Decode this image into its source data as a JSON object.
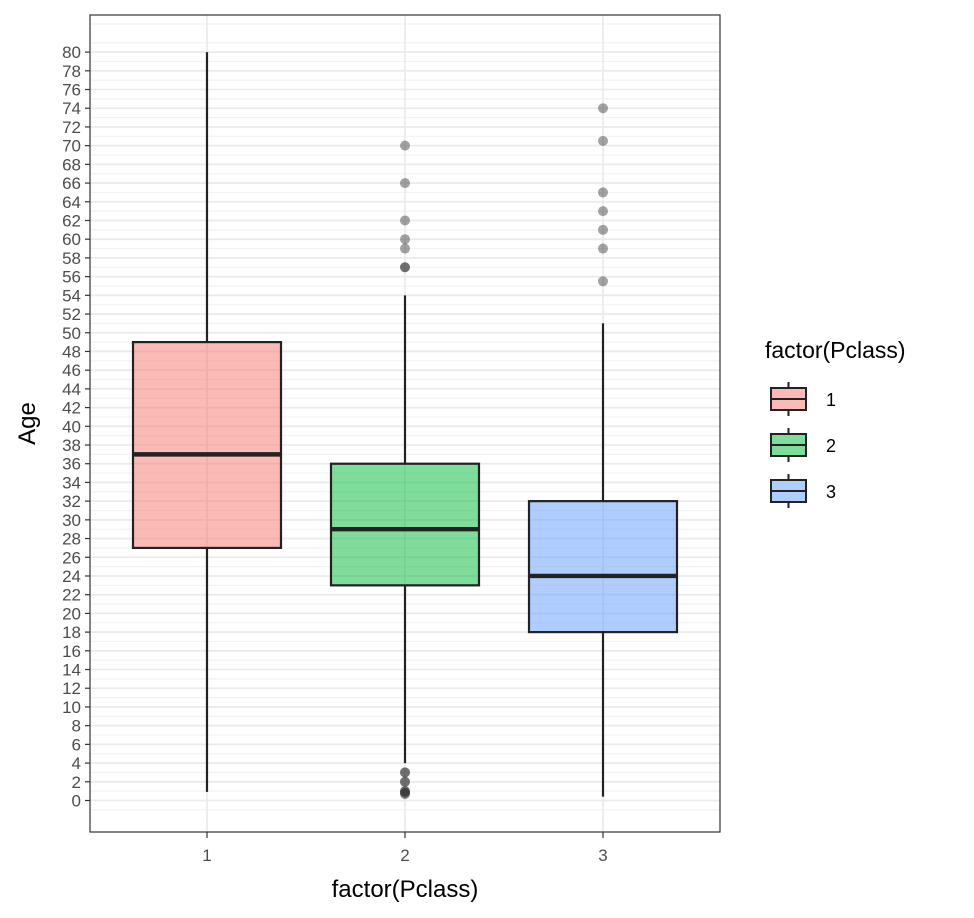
{
  "chart_data": {
    "type": "boxplot",
    "xlabel": "factor(Pclass)",
    "ylabel": "Age",
    "ylim": [
      -3.5,
      84
    ],
    "y_ticks": [
      0,
      2,
      4,
      6,
      8,
      10,
      12,
      14,
      16,
      18,
      20,
      22,
      24,
      26,
      28,
      30,
      32,
      34,
      36,
      38,
      40,
      42,
      44,
      46,
      48,
      50,
      52,
      54,
      56,
      58,
      60,
      62,
      64,
      66,
      68,
      70,
      72,
      74,
      76,
      78,
      80
    ],
    "y_tick_labels": [
      "0",
      "2",
      "4",
      "6",
      "8",
      "10",
      "12",
      "14",
      "16",
      "18",
      "20",
      "22",
      "24",
      "26",
      "28",
      "30",
      "32",
      "34",
      "36",
      "38",
      "40",
      "42",
      "44",
      "46",
      "48",
      "50",
      "52",
      "54",
      "56",
      "58",
      "60",
      "62",
      "64",
      "66",
      "68",
      "70",
      "72",
      "74",
      "76",
      "78",
      "80"
    ],
    "categories": [
      "1",
      "2",
      "3"
    ],
    "boxes": [
      {
        "category": "1",
        "lower_whisker": 0.92,
        "q1": 27,
        "median": 37,
        "q3": 49,
        "upper_whisker": 80,
        "outliers": [],
        "fill": "#F8766D"
      },
      {
        "category": "2",
        "lower_whisker": 4,
        "q1": 23,
        "median": 29,
        "q3": 36,
        "upper_whisker": 54,
        "outliers": [
          0.67,
          0.83,
          0.83,
          1,
          1,
          2,
          2,
          3,
          3,
          57,
          57,
          59,
          60,
          62,
          66,
          70
        ],
        "fill": "#00BA38"
      },
      {
        "category": "3",
        "lower_whisker": 0.42,
        "q1": 18,
        "median": 24,
        "q3": 32,
        "upper_whisker": 51,
        "outliers": [
          55.5,
          59,
          61,
          63,
          65,
          70.5,
          74
        ],
        "fill": "#619CFF"
      }
    ],
    "legend": {
      "title": "factor(Pclass)",
      "position": "right",
      "entries": [
        {
          "label": "1",
          "color": "#F8766D"
        },
        {
          "label": "2",
          "color": "#00BA38"
        },
        {
          "label": "3",
          "color": "#619CFF"
        }
      ]
    },
    "grid": true,
    "theme": "bw"
  }
}
